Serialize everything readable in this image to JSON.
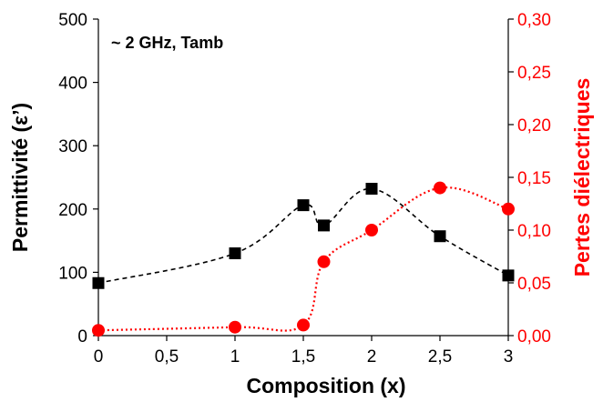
{
  "chart_data": {
    "type": "line",
    "annotation": "~ 2 GHz,  Tamb",
    "xlabel": "Composition (x)",
    "x_ticks": [
      0,
      0.5,
      1,
      1.5,
      2,
      2.5,
      3
    ],
    "x_tick_labels": [
      "0",
      "0,5",
      "1",
      "1,5",
      "2",
      "2,5",
      "3"
    ],
    "xlim": [
      0,
      3
    ],
    "y_left": {
      "label": "Permittivité (ε’)",
      "range": [
        0,
        500
      ],
      "ticks": [
        0,
        100,
        200,
        300,
        400,
        500
      ],
      "tick_labels": [
        "0",
        "100",
        "200",
        "300",
        "400",
        "500"
      ],
      "color": "#000000"
    },
    "y_right": {
      "label": "Pertes diélectriques",
      "range": [
        0,
        0.3
      ],
      "ticks": [
        0,
        0.05,
        0.1,
        0.15,
        0.2,
        0.25,
        0.3
      ],
      "tick_labels": [
        "0,00",
        "0,05",
        "0,10",
        "0,15",
        "0,20",
        "0,25",
        "0,30"
      ],
      "color": "#ff0000"
    },
    "grid": false,
    "series": [
      {
        "axis": "left",
        "marker": "square",
        "line_style": "dashed",
        "color": "#000000",
        "x": [
          0,
          1,
          1.5,
          1.65,
          2,
          2.5,
          3
        ],
        "y": [
          83,
          130,
          206,
          174,
          232,
          157,
          95
        ]
      },
      {
        "axis": "right",
        "marker": "circle",
        "line_style": "dotted",
        "color": "#ff0000",
        "x": [
          0,
          1,
          1.5,
          1.65,
          2,
          2.5,
          3
        ],
        "y": [
          0.005,
          0.008,
          0.01,
          0.07,
          0.1,
          0.14,
          0.12
        ]
      }
    ]
  }
}
